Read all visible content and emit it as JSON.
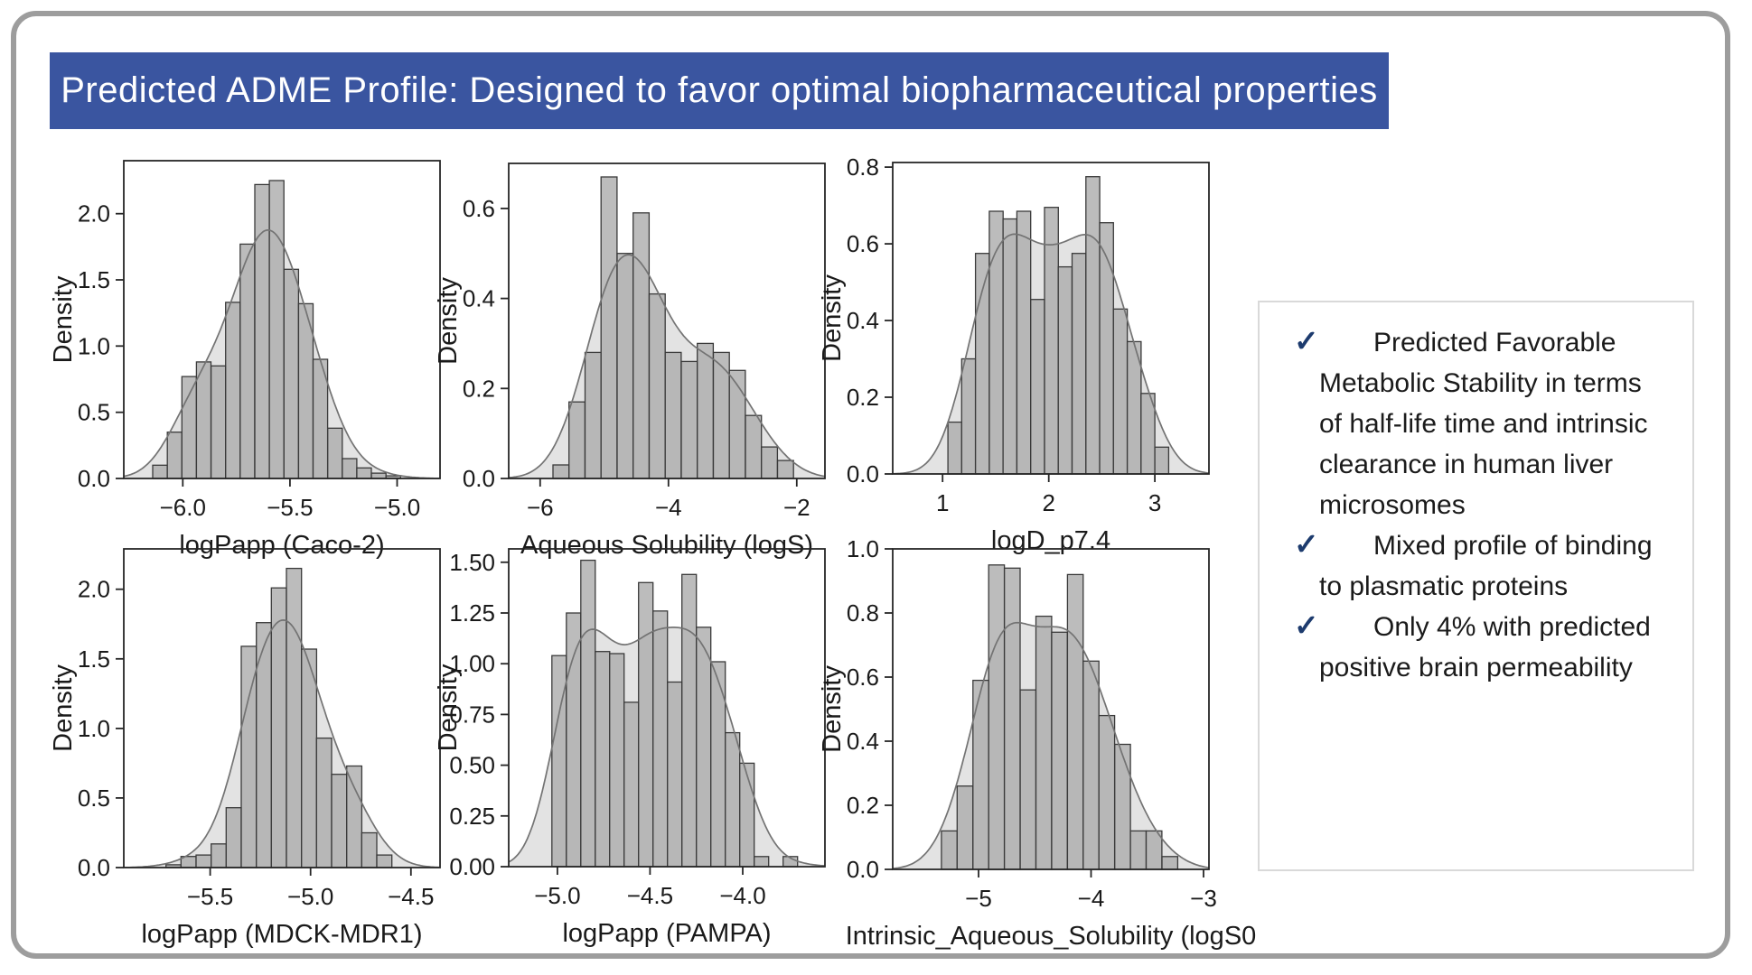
{
  "slide": {
    "title": "Predicted ADME Profile: Designed to favor optimal biopharmaceutical properties",
    "title_bar_color": "#3a55a0",
    "border_color": "#9d9d9d"
  },
  "notes_panel": {
    "check_glyph": "✓",
    "check_color": "#1d3b6e",
    "items": [
      "Predicted Favorable Metabolic Stability in terms of half-life time and intrinsic clearance in human liver microsomes",
      "Mixed profile of binding to plasmatic proteins",
      "Only 4% with predicted positive brain permeability"
    ]
  },
  "style": {
    "bar_fill": "#ababab",
    "bar_edge": "#3a3a3a",
    "kde_line": "#737373",
    "kde_fill": "#cccccc",
    "spine_color": "#262626"
  },
  "chart_data": [
    {
      "type": "histogram+kde",
      "xlabel": "logPapp (Caco-2)",
      "ylabel": "Density",
      "xlim": [
        -6.275,
        -4.8
      ],
      "ylim": [
        0,
        2.4
      ],
      "xticks": [
        -6.0,
        -5.5,
        -5.0
      ],
      "xtick_labels": [
        "−6.0",
        "−5.5",
        "−5.0"
      ],
      "yticks": [
        0.0,
        0.5,
        1.0,
        1.5,
        2.0
      ],
      "ytick_labels": [
        "0.0",
        "0.5",
        "1.0",
        "1.5",
        "2.0"
      ],
      "bin_start": -6.14,
      "bin_width": 0.068,
      "bar_heights": [
        0.1,
        0.35,
        0.77,
        0.88,
        0.85,
        1.33,
        1.77,
        2.22,
        2.25,
        1.58,
        1.32,
        0.9,
        0.38,
        0.15,
        0.08,
        0.04,
        0.02
      ],
      "grid": false,
      "legend": false
    },
    {
      "type": "histogram+kde",
      "xlabel": "Aqueous Solubility (logS)",
      "ylabel": "Density",
      "xlim": [
        -6.49,
        -1.56
      ],
      "ylim": [
        0,
        0.7
      ],
      "xticks": [
        -6,
        -4,
        -2
      ],
      "xtick_labels": [
        "−6",
        "−4",
        "−2"
      ],
      "yticks": [
        0.0,
        0.2,
        0.4,
        0.6
      ],
      "ytick_labels": [
        "0.0",
        "0.2",
        "0.4",
        "0.6"
      ],
      "bin_start": -5.8,
      "bin_width": 0.25,
      "bar_heights": [
        0.03,
        0.17,
        0.28,
        0.67,
        0.5,
        0.59,
        0.41,
        0.28,
        0.26,
        0.3,
        0.28,
        0.24,
        0.14,
        0.07,
        0.04
      ],
      "grid": false,
      "legend": false
    },
    {
      "type": "histogram+kde",
      "xlabel": "logD_p7.4",
      "ylabel": "Density",
      "xlim": [
        0.53,
        3.51
      ],
      "ylim": [
        0,
        0.812
      ],
      "xticks": [
        1,
        2,
        3
      ],
      "xtick_labels": [
        "1",
        "2",
        "3"
      ],
      "yticks": [
        0.0,
        0.2,
        0.4,
        0.6,
        0.8
      ],
      "ytick_labels": [
        "0.0",
        "0.2",
        "0.4",
        "0.6",
        "0.8"
      ],
      "bin_start": 1.05,
      "bin_width": 0.13,
      "bar_heights": [
        0.135,
        0.3,
        0.575,
        0.685,
        0.665,
        0.685,
        0.455,
        0.695,
        0.54,
        0.575,
        0.775,
        0.655,
        0.43,
        0.345,
        0.21,
        0.07
      ],
      "grid": false,
      "legend": false
    },
    {
      "type": "histogram+kde",
      "xlabel": "logPapp (MDCK-MDR1)",
      "ylabel": "Density",
      "xlim": [
        -5.93,
        -4.355
      ],
      "ylim": [
        0,
        2.29
      ],
      "xticks": [
        -5.5,
        -5.0,
        -4.5
      ],
      "xtick_labels": [
        "−5.5",
        "−5.0",
        "−4.5"
      ],
      "yticks": [
        0.0,
        0.5,
        1.0,
        1.5,
        2.0
      ],
      "ytick_labels": [
        "0.0",
        "0.5",
        "1.0",
        "1.5",
        "2.0"
      ],
      "bin_start": -5.72,
      "bin_width": 0.075,
      "bar_heights": [
        0.02,
        0.08,
        0.09,
        0.17,
        0.43,
        1.59,
        1.76,
        2.01,
        2.15,
        1.57,
        0.93,
        0.67,
        0.73,
        0.25,
        0.09
      ],
      "grid": false,
      "legend": false
    },
    {
      "type": "histogram+kde",
      "xlabel": "logPapp (PAMPA)",
      "ylabel": "Density",
      "xlim": [
        -5.263,
        -3.556
      ],
      "ylim": [
        0,
        1.566
      ],
      "xticks": [
        -5.0,
        -4.5,
        -4.0
      ],
      "xtick_labels": [
        "−5.0",
        "−4.5",
        "−4.0"
      ],
      "yticks": [
        0.0,
        0.25,
        0.5,
        0.75,
        1.0,
        1.25,
        1.5
      ],
      "ytick_labels": [
        "0.00",
        "0.25",
        "0.50",
        "0.75",
        "1.00",
        "1.25",
        "1.50"
      ],
      "bin_start": -5.03,
      "bin_width": 0.078,
      "bar_heights": [
        1.04,
        1.25,
        1.51,
        1.06,
        1.05,
        0.81,
        1.4,
        1.26,
        0.91,
        1.44,
        1.18,
        1.01,
        0.66,
        0.51,
        0.05,
        0,
        0.05
      ],
      "grid": false,
      "legend": false
    },
    {
      "type": "histogram+kde",
      "xlabel": "Intrinsic_Aqueous_Solubility (logS0",
      "ylabel": "Density",
      "xlim": [
        -5.763,
        -2.952
      ],
      "ylim": [
        0,
        1.0
      ],
      "xticks": [
        -5,
        -4,
        -3
      ],
      "xtick_labels": [
        "−5",
        "−4",
        "−3"
      ],
      "yticks": [
        0.0,
        0.2,
        0.4,
        0.6,
        0.8,
        1.0
      ],
      "ytick_labels": [
        "0.0",
        "0.2",
        "0.4",
        "0.6",
        "0.8",
        "1.0"
      ],
      "bin_start": -5.33,
      "bin_width": 0.14,
      "bar_heights": [
        0.12,
        0.26,
        0.59,
        0.95,
        0.94,
        0.56,
        0.79,
        0.74,
        0.92,
        0.65,
        0.48,
        0.39,
        0.12,
        0.12,
        0.04
      ],
      "grid": false,
      "legend": false
    }
  ]
}
